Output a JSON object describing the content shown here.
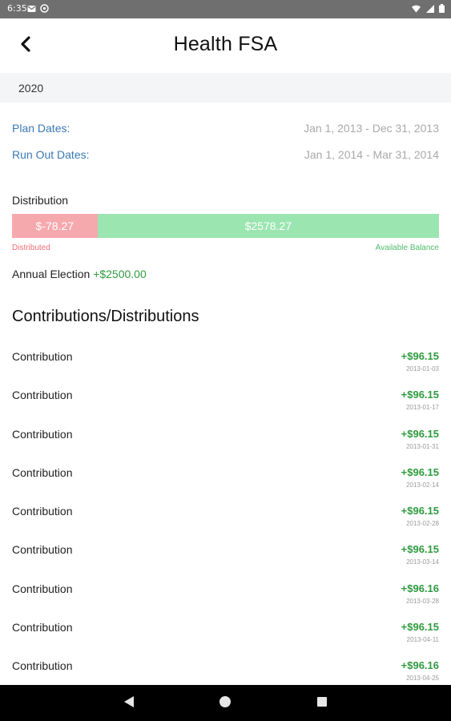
{
  "status_bar": {
    "time": "6:35",
    "icons": [
      "gmail-icon",
      "sync-icon",
      "wifi-icon",
      "signal-icon",
      "battery-icon"
    ]
  },
  "header": {
    "title": "Health FSA",
    "back_icon": "chevron-left-icon"
  },
  "plan_year": "2020",
  "plan_dates": {
    "label": "Plan Dates:",
    "value": "Jan 1, 2013 - Dec 31, 2013"
  },
  "run_out_dates": {
    "label": "Run Out Dates:",
    "value": "Jan 1, 2014 - Mar 31, 2014"
  },
  "distribution": {
    "title": "Distribution",
    "distributed_value": "$-78.27",
    "available_value": "$2578.27",
    "distributed_label": "Distributed",
    "available_label": "Available Balance",
    "distributed_fraction": 0.2,
    "colors": {
      "distributed": "#f6a9ad",
      "available": "#9be5b0"
    }
  },
  "annual_election": {
    "label": "Annual Election",
    "value": "+$2500.00"
  },
  "section_title": "Contributions/Distributions",
  "transactions": [
    {
      "type": "Contribution",
      "amount": "+$96.15",
      "date": "2013-01-03"
    },
    {
      "type": "Contribution",
      "amount": "+$96.15",
      "date": "2013-01-17"
    },
    {
      "type": "Contribution",
      "amount": "+$96.15",
      "date": "2013-01-31"
    },
    {
      "type": "Contribution",
      "amount": "+$96.15",
      "date": "2013-02-14"
    },
    {
      "type": "Contribution",
      "amount": "+$96.15",
      "date": "2013-02-28"
    },
    {
      "type": "Contribution",
      "amount": "+$96.15",
      "date": "2013-03-14"
    },
    {
      "type": "Contribution",
      "amount": "+$96.16",
      "date": "2013-03-28"
    },
    {
      "type": "Contribution",
      "amount": "+$96.15",
      "date": "2013-04-11"
    },
    {
      "type": "Contribution",
      "amount": "+$96.16",
      "date": "2013-04-25"
    }
  ],
  "nav": {
    "back": "triangle-back-icon",
    "home": "circle-home-icon",
    "recents": "square-recents-icon"
  },
  "colors": {
    "link_blue": "#3a78b7",
    "positive_green": "#2f9b3f",
    "muted_gray": "#a9a9a9",
    "distributed_red": "#ef6b74",
    "available_green": "#4fbd6b"
  }
}
